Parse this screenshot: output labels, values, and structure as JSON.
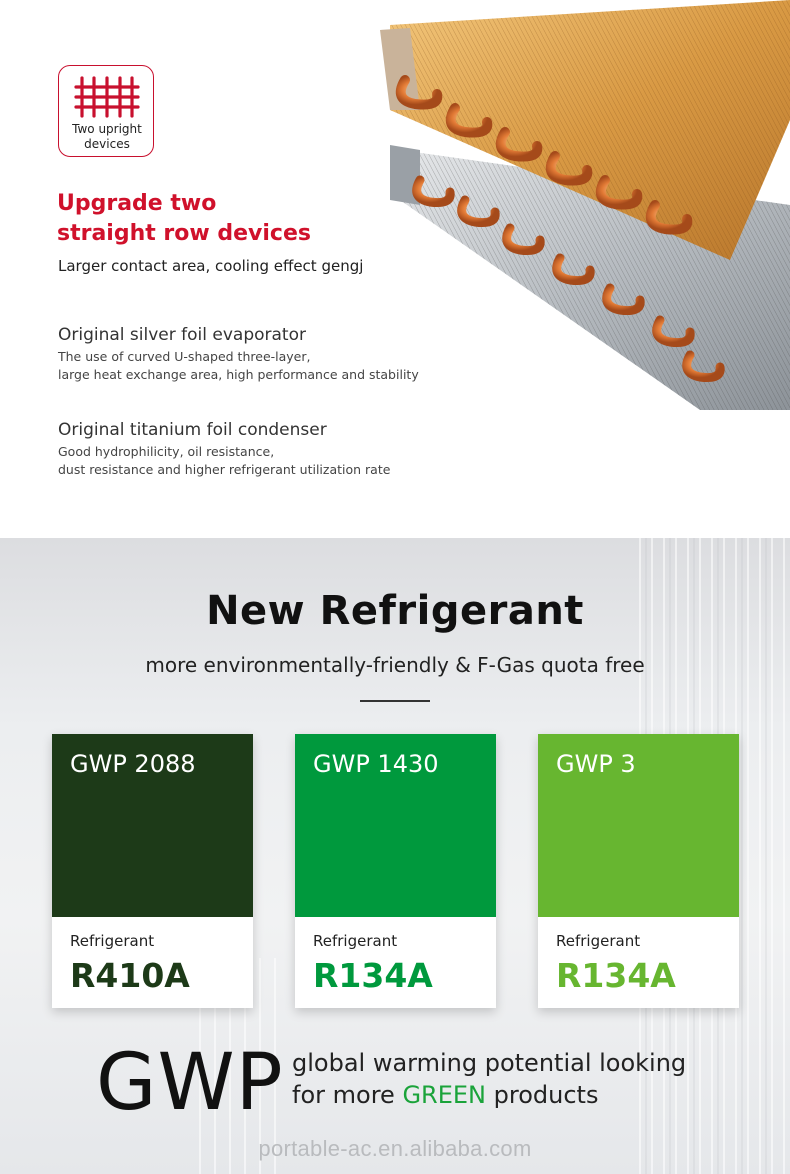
{
  "badge": {
    "label_line1": "Two upright",
    "label_line2": "devices",
    "icon": "grid-icon",
    "accent": "#c8102e"
  },
  "headline": {
    "line1": "Upgrade two",
    "line2": "straight row devices",
    "color": "#d0112b"
  },
  "subline": "Larger contact area, cooling effect gengj",
  "features": [
    {
      "title": "Original silver foil evaporator",
      "desc_line1": "The use of curved U-shaped three-layer,",
      "desc_line2": "large heat exchange area, high performance and stability"
    },
    {
      "title": "Original titanium foil condenser",
      "desc_line1": "Good hydrophilicity, oil resistance,",
      "desc_line2": "dust resistance and higher refrigerant utilization rate"
    }
  ],
  "refrigerant": {
    "title": "New Refrigerant",
    "subtitle": "more environmentally-friendly & F-Gas quota free",
    "cards": [
      {
        "gwp": "GWP 2088",
        "label": "Refrigerant",
        "code": "R410A",
        "color": "#1d3a18"
      },
      {
        "gwp": "GWP 1430",
        "label": "Refrigerant",
        "code": "R134A",
        "color": "#00993d"
      },
      {
        "gwp": "GWP 3",
        "label": "Refrigerant",
        "code": "R134A",
        "color": "#67b630"
      }
    ],
    "gwp_big": "GWP",
    "gwp_line1": "global warming potential looking",
    "gwp_line2_prefix": "for more ",
    "gwp_line2_green": "GREEN",
    "gwp_line2_suffix": " products"
  },
  "watermark": "portable-ac.en.alibaba.com"
}
